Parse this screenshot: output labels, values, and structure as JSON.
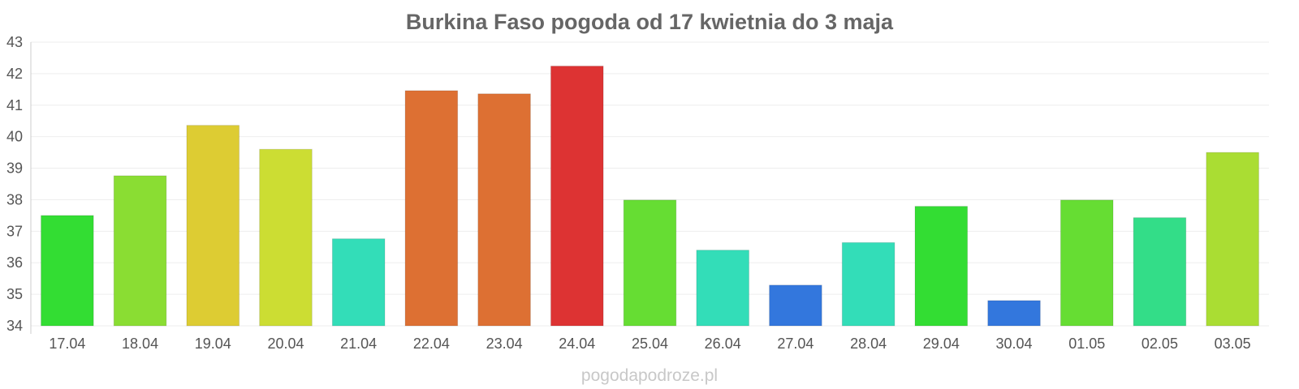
{
  "chart_data": {
    "type": "bar",
    "title": "Burkina Faso pogoda od 17 kwietnia do 3 maja",
    "xlabel": "",
    "ylabel": "",
    "categories": [
      "17.04",
      "18.04",
      "19.04",
      "20.04",
      "21.04",
      "22.04",
      "23.04",
      "24.04",
      "25.04",
      "26.04",
      "27.04",
      "28.04",
      "29.04",
      "30.04",
      "01.05",
      "02.05",
      "03.05"
    ],
    "values": [
      37.5,
      38.76,
      40.36,
      39.6,
      36.76,
      41.46,
      41.36,
      42.24,
      37.99,
      36.4,
      35.29,
      36.64,
      37.79,
      34.8,
      37.99,
      37.43,
      39.5
    ],
    "colors": [
      "#33dd33",
      "#8add33",
      "#ddcc33",
      "#ccdd33",
      "#33ddb8",
      "#dd7033",
      "#dd7033",
      "#dd3333",
      "#66dd33",
      "#33ddb8",
      "#3377dd",
      "#33ddb8",
      "#33dd33",
      "#3377dd",
      "#66dd33",
      "#33dd88",
      "#aadd33"
    ],
    "ylim": [
      34,
      43
    ],
    "yticks": [
      34,
      35,
      36,
      37,
      38,
      39,
      40,
      41,
      42,
      43
    ],
    "grid": true,
    "legend": "none"
  },
  "watermark": "pogodapodroze.pl"
}
